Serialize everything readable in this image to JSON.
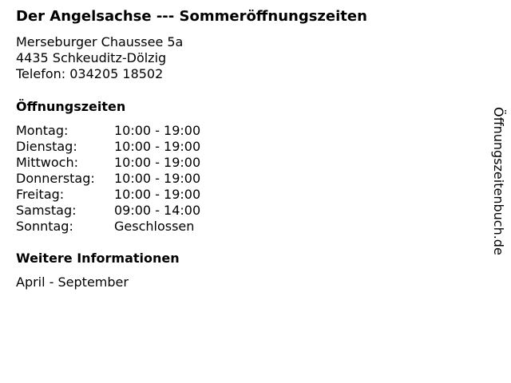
{
  "title": "Der Angelsachse --- Sommeröffnungszeiten",
  "address": [
    "Merseburger Chaussee 5a",
    "4435 Schkeuditz-Dölzig",
    "Telefon: 034205 18502"
  ],
  "hours_heading": "Öffnungszeiten",
  "hours": [
    {
      "day": "Montag:",
      "time": "10:00 - 19:00"
    },
    {
      "day": "Dienstag:",
      "time": "10:00 - 19:00"
    },
    {
      "day": "Mittwoch:",
      "time": "10:00 - 19:00"
    },
    {
      "day": "Donnerstag:",
      "time": "10:00 - 19:00"
    },
    {
      "day": "Freitag:",
      "time": "10:00 - 19:00"
    },
    {
      "day": "Samstag:",
      "time": "09:00 - 14:00"
    },
    {
      "day": "Sonntag:",
      "time": "Geschlossen"
    }
  ],
  "info_heading": "Weitere Informationen",
  "info": "April - September",
  "watermark": "Öffnungszeitenbuch.de"
}
